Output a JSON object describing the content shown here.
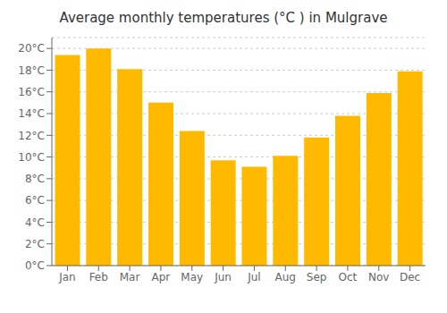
{
  "chart_data": {
    "type": "bar",
    "title": "Average monthly temperatures (°C ) in Mulgrave",
    "categories": [
      "Jan",
      "Feb",
      "Mar",
      "Apr",
      "May",
      "Jun",
      "Jul",
      "Aug",
      "Sep",
      "Oct",
      "Nov",
      "Dec"
    ],
    "values": [
      19.4,
      20.0,
      18.1,
      15.0,
      12.4,
      9.7,
      9.1,
      10.1,
      11.8,
      13.8,
      15.9,
      17.9
    ],
    "color": "#FFBA00",
    "ylim": [
      0,
      21
    ],
    "yticks": [
      {
        "value": 0,
        "label": "0°C"
      },
      {
        "value": 2,
        "label": "2°C"
      },
      {
        "value": 4,
        "label": "4°C"
      },
      {
        "value": 6,
        "label": "6°C"
      },
      {
        "value": 8,
        "label": "8°C"
      },
      {
        "value": 10,
        "label": "10°C"
      },
      {
        "value": 12,
        "label": "12°C"
      },
      {
        "value": 14,
        "label": "14°C"
      },
      {
        "value": 16,
        "label": "16°C"
      },
      {
        "value": 18,
        "label": "18°C"
      },
      {
        "value": 20,
        "label": "20°C"
      }
    ],
    "grid": true
  }
}
